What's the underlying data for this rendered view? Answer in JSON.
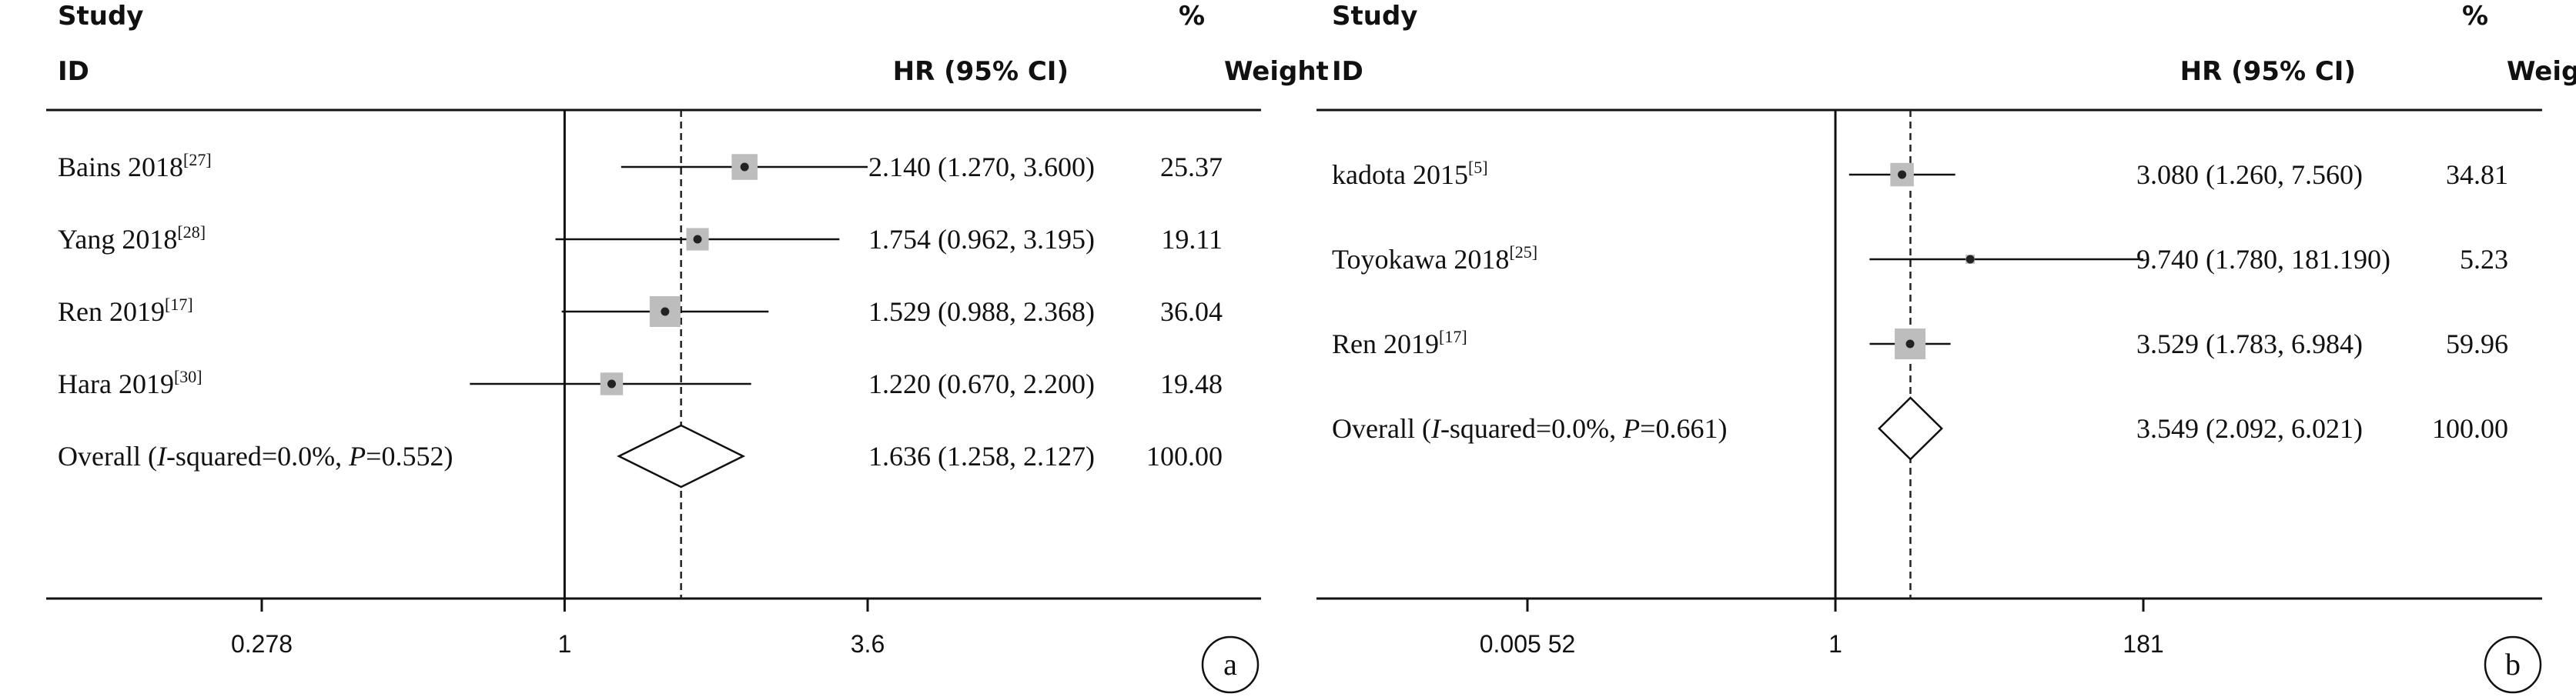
{
  "chart_data": [
    {
      "type": "forest",
      "panel": "a",
      "header": {
        "study": "Study",
        "id": "ID",
        "effect": "HR (95% CI)",
        "pct": "%",
        "weight": "Weight"
      },
      "x_scale": "log",
      "xlim": [
        0.278,
        3.6
      ],
      "null_value": 1,
      "pooled_line": 1.636,
      "ticks": [
        {
          "value": 0.278,
          "label": "0.278"
        },
        {
          "value": 1,
          "label": "1"
        },
        {
          "value": 3.6,
          "label": "3.6"
        }
      ],
      "studies": [
        {
          "label": "Bains 2018",
          "ref": "[27]",
          "hr": 2.14,
          "lo": 1.27,
          "hi": 3.6,
          "hr_text": "2.140 (1.270, 3.600)",
          "weight": "25.37",
          "w": 25.37
        },
        {
          "label": "Yang 2018",
          "ref": "[28]",
          "hr": 1.754,
          "lo": 0.962,
          "hi": 3.195,
          "hr_text": "1.754 (0.962, 3.195)",
          "weight": "19.11",
          "w": 19.11
        },
        {
          "label": "Ren 2019",
          "ref": "[17]",
          "hr": 1.529,
          "lo": 0.988,
          "hi": 2.368,
          "hr_text": "1.529 (0.988, 2.368)",
          "weight": "36.04",
          "w": 36.04
        },
        {
          "label": "Hara 2019",
          "ref": "[30]",
          "hr": 1.22,
          "lo": 0.67,
          "hi": 2.2,
          "hr_text": "1.220 (0.670, 2.200)",
          "weight": "19.48",
          "w": 19.48
        }
      ],
      "overall": {
        "prefix": "Overall  (",
        "i2_label": "I",
        "i2_text": "-squared=0.0%, ",
        "p_label": "P",
        "p_text": "=0.552)",
        "hr": 1.636,
        "lo": 1.258,
        "hi": 2.127,
        "hr_text": "1.636 (1.258, 2.127)",
        "weight": "100.00"
      },
      "badge": "a"
    },
    {
      "type": "forest",
      "panel": "b",
      "header": {
        "study": "Study",
        "id": "ID",
        "effect": "HR (95% CI)",
        "pct": "%",
        "weight": "Weight"
      },
      "x_scale": "log",
      "xlim": [
        0.00552,
        181
      ],
      "null_value": 1,
      "pooled_line": 3.549,
      "ticks": [
        {
          "value": 0.00552,
          "label": "0.005 52"
        },
        {
          "value": 1,
          "label": "1"
        },
        {
          "value": 181,
          "label": "181"
        }
      ],
      "studies": [
        {
          "label": "kadota 2015",
          "ref": "[5]",
          "hr": 3.08,
          "lo": 1.26,
          "hi": 7.56,
          "hr_text": "3.080 (1.260, 7.560)",
          "weight": "34.81",
          "w": 34.81
        },
        {
          "label": "Toyokawa 2018",
          "ref": "[25]",
          "hr": 9.74,
          "lo": 1.78,
          "hi": 181.19,
          "hr_text": "9.740 (1.780, 181.190)",
          "weight": "5.23",
          "w": 5.23
        },
        {
          "label": "Ren 2019",
          "ref": "[17]",
          "hr": 3.529,
          "lo": 1.783,
          "hi": 6.984,
          "hr_text": "3.529 (1.783, 6.984)",
          "weight": "59.96",
          "w": 59.96
        }
      ],
      "overall": {
        "prefix": "Overall  (",
        "i2_label": "I",
        "i2_text": "-squared=0.0%, ",
        "p_label": "P",
        "p_text": "=0.661)",
        "hr": 3.549,
        "lo": 2.092,
        "hi": 6.021,
        "hr_text": "3.549 (2.092, 6.021)",
        "weight": "100.00"
      },
      "badge": "b"
    }
  ]
}
